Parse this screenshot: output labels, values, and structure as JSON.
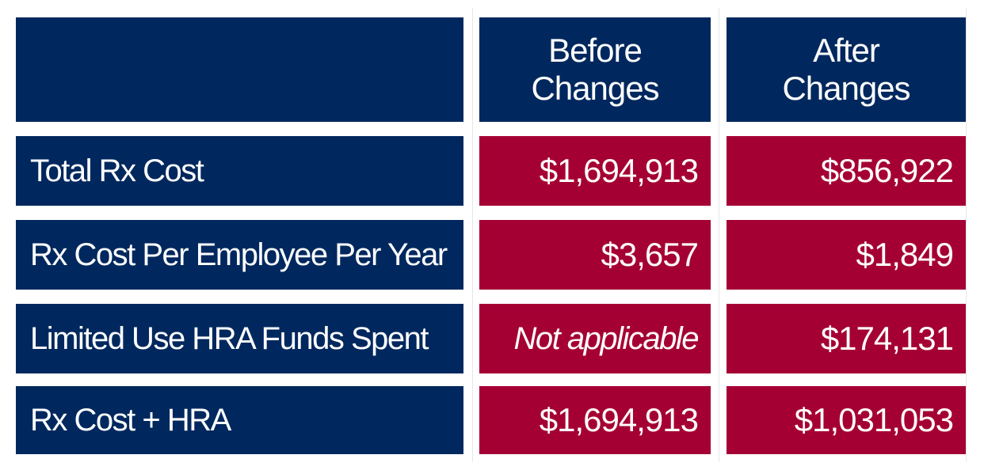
{
  "chart_data": {
    "type": "table",
    "columns": [
      "",
      "Before Changes",
      "After Changes"
    ],
    "header": {
      "col1_line1": "Before",
      "col1_line2": "Changes",
      "col2_line1": "After",
      "col2_line2": "Changes"
    },
    "rows": [
      {
        "label": "Total Rx Cost",
        "before": "$1,694,913",
        "after": "$856,922"
      },
      {
        "label": "Rx Cost Per Employee Per Year",
        "before": "$3,657",
        "after": "$1,849"
      },
      {
        "label": "Limited Use HRA Funds Spent",
        "before": "Not applicable",
        "after": "$174,131"
      },
      {
        "label": "Rx Cost + HRA",
        "before": "$1,694,913",
        "after": "$1,031,053"
      }
    ],
    "colors": {
      "label_cells": "#00285e",
      "value_cells": "#a50034",
      "text": "#ffffff"
    }
  }
}
